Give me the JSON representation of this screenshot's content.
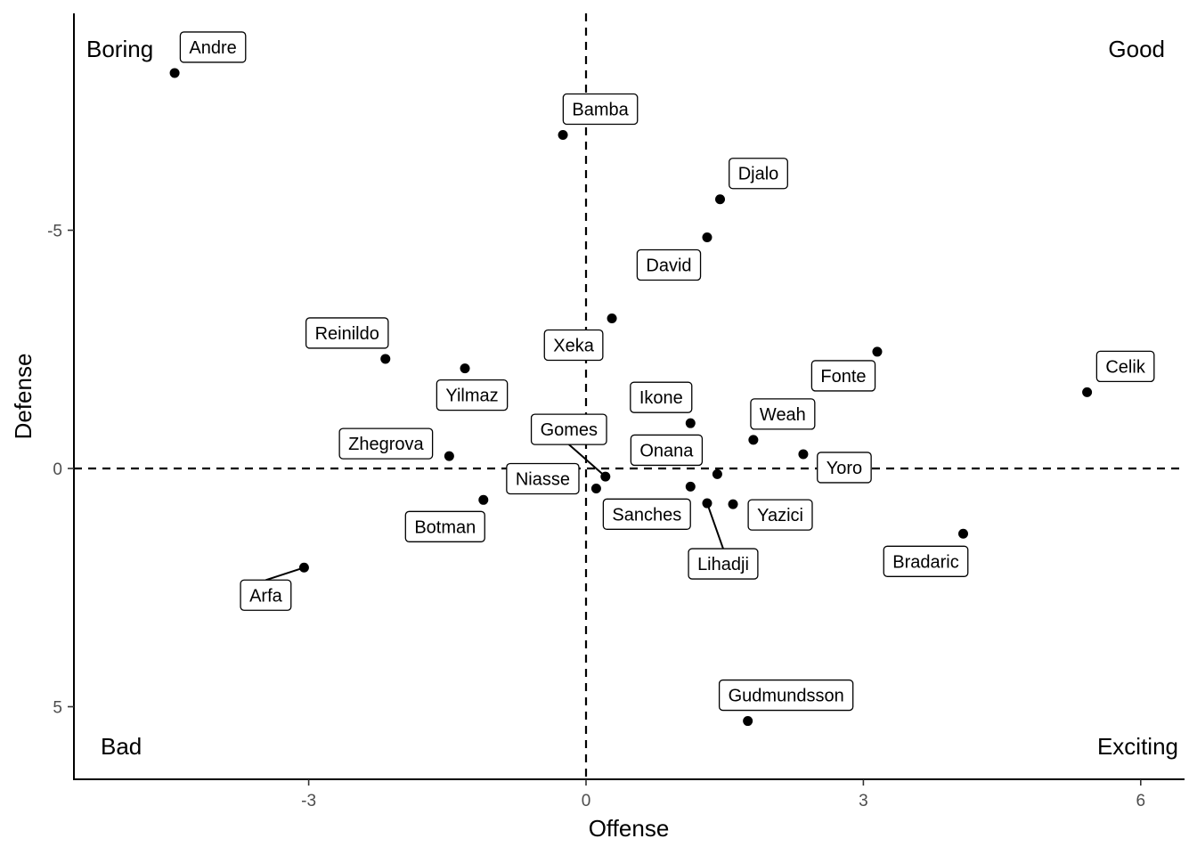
{
  "chart_data": {
    "type": "scatter",
    "title": "",
    "xlabel": "Offense",
    "ylabel": "Defense",
    "xlim": [
      -5.5,
      6.5
    ],
    "ylim": [
      -9.5,
      6.5
    ],
    "y_reversed": true,
    "xticks": [
      -3,
      0,
      3,
      6
    ],
    "yticks": [
      -5,
      0,
      5
    ],
    "grid": false,
    "legend": "none",
    "reference_lines": {
      "x": 0,
      "y": 0,
      "style": "dashed"
    },
    "quadrant_labels": {
      "top_left": "Boring",
      "top_right": "Good",
      "bottom_left": "Bad",
      "bottom_right": "Exciting"
    },
    "points": [
      {
        "name": "Andre",
        "x": -4.45,
        "y": -8.3
      },
      {
        "name": "Bamba",
        "x": -0.25,
        "y": -7.0
      },
      {
        "name": "Djalo",
        "x": 1.45,
        "y": -5.65
      },
      {
        "name": "David",
        "x": 1.31,
        "y": -4.85
      },
      {
        "name": "Reinildo",
        "x": -2.17,
        "y": -2.3
      },
      {
        "name": "Yilmaz",
        "x": -1.31,
        "y": -2.1
      },
      {
        "name": "Xeka",
        "x": 0.28,
        "y": -3.15
      },
      {
        "name": "Fonte",
        "x": 3.15,
        "y": -2.45
      },
      {
        "name": "Celik",
        "x": 5.42,
        "y": -1.6
      },
      {
        "name": "Ikone",
        "x": 1.13,
        "y": -0.95
      },
      {
        "name": "Weah",
        "x": 1.81,
        "y": -0.6
      },
      {
        "name": "Zhegrova",
        "x": -1.48,
        "y": -0.26
      },
      {
        "name": "Gomes",
        "x": 0.21,
        "y": 0.17
      },
      {
        "name": "Onana",
        "x": 1.42,
        "y": 0.12
      },
      {
        "name": "Yoro",
        "x": 2.35,
        "y": -0.3
      },
      {
        "name": "Niasse",
        "x": 0.11,
        "y": 0.42
      },
      {
        "name": "Sanches",
        "x": 1.13,
        "y": 0.38
      },
      {
        "name": "Lihadji",
        "x": 1.31,
        "y": 0.73
      },
      {
        "name": "Yazici",
        "x": 1.59,
        "y": 0.75
      },
      {
        "name": "Botman",
        "x": -1.11,
        "y": 0.66
      },
      {
        "name": "Bradaric",
        "x": 4.08,
        "y": 1.37
      },
      {
        "name": "Arfa",
        "x": -3.05,
        "y": 2.08
      },
      {
        "name": "Gudmundsson",
        "x": 1.75,
        "y": 5.3
      }
    ]
  }
}
